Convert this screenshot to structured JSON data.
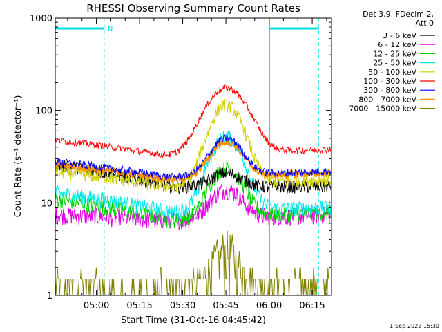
{
  "chart_data": {
    "type": "line",
    "title": "RHESSI Observing Summary Count Rates",
    "xlabel": "Start Time (31-Oct-16 04:45:42)",
    "ylabel": "Count Rate (s⁻¹ detector⁻¹)",
    "yscale": "log",
    "ylim": [
      1,
      1000
    ],
    "xlim_minutes": [
      0,
      96
    ],
    "x_ticks": [
      {
        "label": "05:00",
        "minute": 14.3
      },
      {
        "label": "05:15",
        "minute": 29.3
      },
      {
        "label": "05:30",
        "minute": 44.3
      },
      {
        "label": "05:45",
        "minute": 59.3
      },
      {
        "label": "06:00",
        "minute": 74.3
      },
      {
        "label": "06:15",
        "minute": 89.3
      }
    ],
    "y_ticks": [
      {
        "label": "1",
        "value": 1
      },
      {
        "label": "10",
        "value": 10
      },
      {
        "label": "100",
        "value": 100
      },
      {
        "label": "1000",
        "value": 1000
      }
    ],
    "legend_header": [
      "Det 3,9, FDecim 2,",
      "Att 0"
    ],
    "series": [
      {
        "name": "3 - 6 keV",
        "color": "#000000",
        "base_start": 26,
        "base_min": 15,
        "base_end": 15,
        "peak": 21,
        "noise": 0.1
      },
      {
        "name": "6 - 12 keV",
        "color": "#e000e0",
        "base_start": 7.5,
        "base_min": 6.5,
        "base_end": 7.5,
        "peak": 14,
        "noise": 0.14
      },
      {
        "name": "12 - 25 keV",
        "color": "#00d000",
        "base_start": 11,
        "base_min": 6.5,
        "base_end": 8,
        "peak": 24,
        "noise": 0.12
      },
      {
        "name": "25 - 50 keV",
        "color": "#00e8e8",
        "base_start": 13,
        "base_min": 8,
        "base_end": 9,
        "peak": 52,
        "noise": 0.12
      },
      {
        "name": "50 - 100 keV",
        "color": "#d0d000",
        "base_start": 22,
        "base_min": 15,
        "base_end": 18,
        "peak": 115,
        "noise": 0.1
      },
      {
        "name": "100 - 300 keV",
        "color": "#ff0000",
        "base_start": 48,
        "base_min": 32,
        "base_end": 38,
        "peak": 175,
        "noise": 0.05
      },
      {
        "name": "300 - 800 keV",
        "color": "#0000ff",
        "base_start": 28,
        "base_min": 19,
        "base_end": 22,
        "peak": 50,
        "noise": 0.06
      },
      {
        "name": "800 - 7000 keV",
        "color": "#ff9000",
        "base_start": 26,
        "base_min": 18,
        "base_end": 21,
        "peak": 46,
        "noise": 0.05
      },
      {
        "name": "7000 - 15000 keV",
        "color": "#808000",
        "base_start": 1.5,
        "base_min": 1.5,
        "base_end": 1.5,
        "peak": 3.5,
        "noise": 0.5
      }
    ],
    "flare_peak_minute": 59.5,
    "night_intervals_minutes": [
      [
        0,
        17
      ],
      [
        74.5,
        91.5
      ]
    ],
    "saa_markers": [
      {
        "label": "N",
        "minute": 17
      }
    ],
    "timestamp": "1-Sep-2022 15:30"
  }
}
